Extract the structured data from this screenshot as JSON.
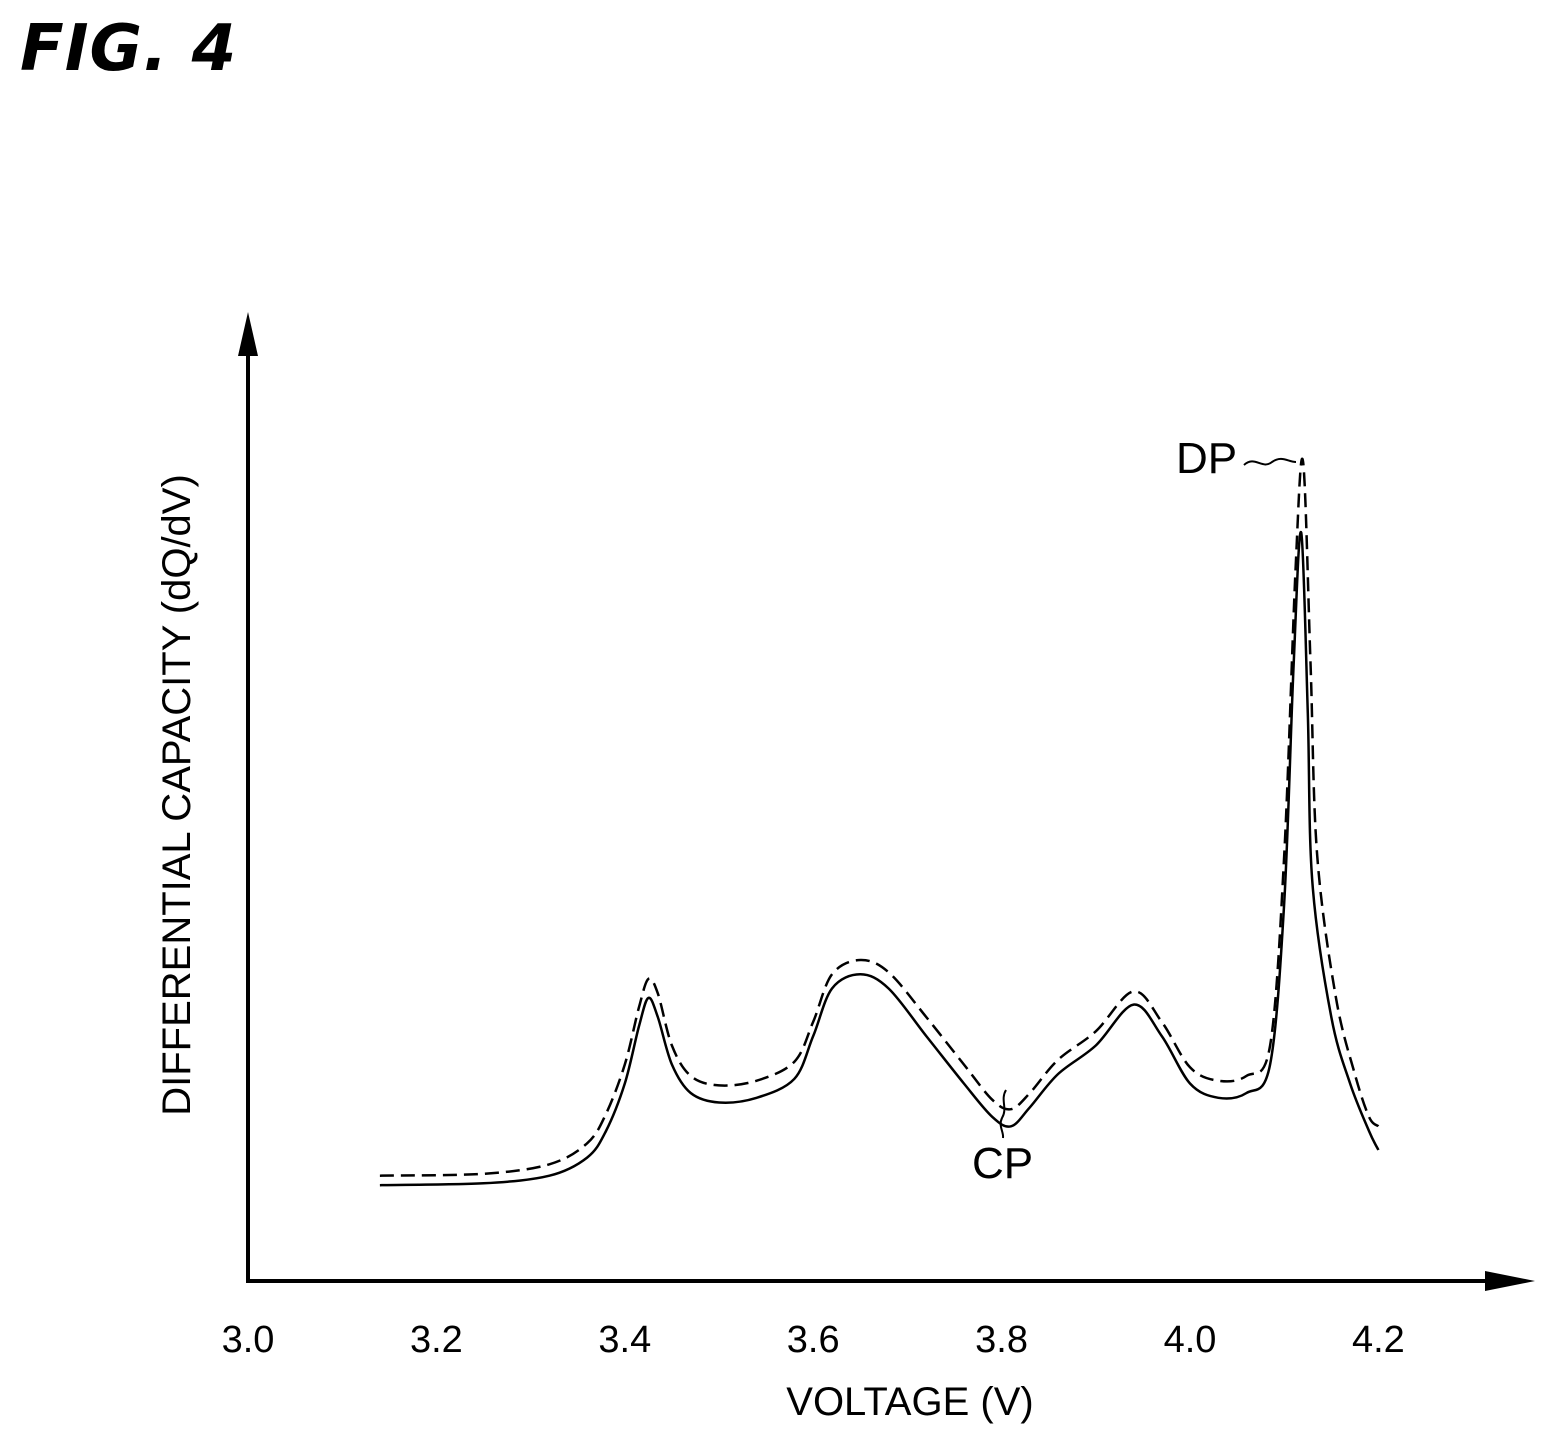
{
  "figure_label": "FIG. 4",
  "chart_data": {
    "type": "line",
    "title": "",
    "xlabel": "VOLTAGE (V)",
    "ylabel": "DIFFERENTIAL CAPACITY (dQ/dV)",
    "xlim": [
      3.0,
      4.35
    ],
    "ylim": [
      0,
      100
    ],
    "x_ticks": [
      "3.0",
      "3.2",
      "3.4",
      "3.6",
      "3.8",
      "4.0",
      "4.2"
    ],
    "y_ticks": [],
    "grid": false,
    "legend": "none",
    "series": [
      {
        "style": "solid",
        "points": [
          [
            3.14,
            10.3
          ],
          [
            3.25,
            10.5
          ],
          [
            3.32,
            11.3
          ],
          [
            3.36,
            13.2
          ],
          [
            3.38,
            16.0
          ],
          [
            3.4,
            21.0
          ],
          [
            3.415,
            27.0
          ],
          [
            3.425,
            30.0
          ],
          [
            3.435,
            28.0
          ],
          [
            3.45,
            23.0
          ],
          [
            3.47,
            20.0
          ],
          [
            3.5,
            19.0
          ],
          [
            3.54,
            19.5
          ],
          [
            3.58,
            21.5
          ],
          [
            3.6,
            26.0
          ],
          [
            3.62,
            31.0
          ],
          [
            3.65,
            32.5
          ],
          [
            3.68,
            31.0
          ],
          [
            3.72,
            26.0
          ],
          [
            3.76,
            21.0
          ],
          [
            3.79,
            17.5
          ],
          [
            3.81,
            16.5
          ],
          [
            3.83,
            18.5
          ],
          [
            3.86,
            22.0
          ],
          [
            3.9,
            25.0
          ],
          [
            3.94,
            29.3
          ],
          [
            3.97,
            26.0
          ],
          [
            4.0,
            21.0
          ],
          [
            4.03,
            19.5
          ],
          [
            4.06,
            20.0
          ],
          [
            4.085,
            23.0
          ],
          [
            4.1,
            40.0
          ],
          [
            4.11,
            65.0
          ],
          [
            4.118,
            79.0
          ],
          [
            4.125,
            60.0
          ],
          [
            4.13,
            42.0
          ],
          [
            4.15,
            28.0
          ],
          [
            4.17,
            21.0
          ],
          [
            4.19,
            16.0
          ],
          [
            4.2,
            14.0
          ]
        ]
      },
      {
        "style": "dashed",
        "points": [
          [
            3.14,
            11.3
          ],
          [
            3.25,
            11.5
          ],
          [
            3.32,
            12.5
          ],
          [
            3.36,
            14.7
          ],
          [
            3.38,
            17.8
          ],
          [
            3.4,
            23.0
          ],
          [
            3.415,
            29.0
          ],
          [
            3.425,
            32.0
          ],
          [
            3.435,
            30.5
          ],
          [
            3.45,
            25.0
          ],
          [
            3.47,
            21.8
          ],
          [
            3.5,
            20.8
          ],
          [
            3.54,
            21.3
          ],
          [
            3.58,
            23.3
          ],
          [
            3.6,
            27.5
          ],
          [
            3.62,
            32.5
          ],
          [
            3.65,
            34.0
          ],
          [
            3.68,
            32.7
          ],
          [
            3.72,
            28.0
          ],
          [
            3.76,
            23.0
          ],
          [
            3.79,
            19.3
          ],
          [
            3.81,
            18.3
          ],
          [
            3.83,
            20.0
          ],
          [
            3.86,
            23.5
          ],
          [
            3.9,
            26.5
          ],
          [
            3.94,
            30.7
          ],
          [
            3.97,
            27.5
          ],
          [
            4.0,
            22.7
          ],
          [
            4.03,
            21.3
          ],
          [
            4.06,
            21.8
          ],
          [
            4.085,
            25.0
          ],
          [
            4.1,
            45.0
          ],
          [
            4.112,
            75.0
          ],
          [
            4.12,
            86.5
          ],
          [
            4.128,
            65.0
          ],
          [
            4.135,
            45.0
          ],
          [
            4.155,
            30.0
          ],
          [
            4.175,
            22.0
          ],
          [
            4.19,
            17.5
          ],
          [
            4.2,
            16.5
          ]
        ]
      }
    ],
    "annotations": [
      {
        "text": "DP",
        "x": 4.118,
        "y": 70
      },
      {
        "text": "CP",
        "x": 3.81,
        "y": 16.5
      }
    ]
  }
}
